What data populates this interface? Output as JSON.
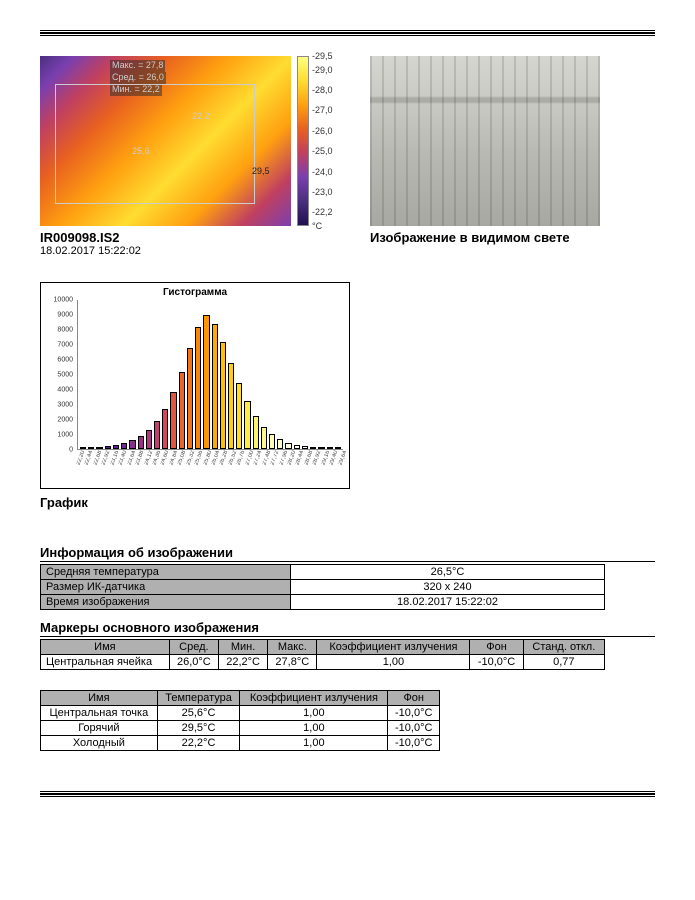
{
  "thermal": {
    "filename": "IR009098.IS2",
    "timestamp": "18.02.2017 15:22:02",
    "overlay": {
      "max_label": "Макс. = 27,8",
      "avg_label": "Сред. = 26,0",
      "min_label": "Мин. = 22,2",
      "center_point": "25,6",
      "hot_point": "29,5",
      "cold_point": "22,2"
    },
    "palette_ticks": [
      "29,5",
      "29,0",
      "28,0",
      "27,0",
      "26,0",
      "25,0",
      "24,0",
      "23,0",
      "22,2",
      "°C"
    ],
    "palette_positions_pct": [
      0,
      8,
      20,
      32,
      44,
      56,
      68,
      80,
      92,
      100
    ]
  },
  "visible_caption": "Изображение в видимом свете",
  "histogram": {
    "title": "Гистограмма",
    "caption": "График",
    "ymax": 10000,
    "ytick_step": 1000,
    "yticks": [
      "10000",
      "9000",
      "8000",
      "7000",
      "6000",
      "5000",
      "4000",
      "3000",
      "2000",
      "1000",
      "0"
    ],
    "bar_values": [
      50,
      80,
      120,
      180,
      260,
      400,
      600,
      900,
      1300,
      1900,
      2700,
      3800,
      5200,
      6800,
      8200,
      9000,
      8400,
      7200,
      5800,
      4400,
      3200,
      2200,
      1500,
      1000,
      650,
      420,
      280,
      180,
      120,
      80,
      50,
      30
    ],
    "bar_colors": [
      "#3a1870",
      "#421a7c",
      "#4a1c88",
      "#55208f",
      "#632592",
      "#742a93",
      "#882e90",
      "#9c3288",
      "#b0387c",
      "#c2406c",
      "#d24a58",
      "#e05640",
      "#eb642a",
      "#f37418",
      "#f9860c",
      "#fc9806",
      "#feaa04",
      "#ffbc08",
      "#ffce14",
      "#ffde28",
      "#ffec44",
      "#fff468",
      "#fff890",
      "#fffab4",
      "#fffcd0",
      "#fffde4",
      "#fffef0",
      "#fffff6",
      "#fffffa",
      "#fffffc",
      "#fffffe",
      "#ffffff"
    ],
    "bar_border": "#000000",
    "x_labels": [
      "22,20",
      "22,44",
      "22,68",
      "22,92",
      "23,16",
      "23,40",
      "23,64",
      "23,88",
      "24,12",
      "24,36",
      "24,60",
      "24,84",
      "25,08",
      "25,32",
      "25,56",
      "25,80",
      "26,04",
      "26,28",
      "26,52",
      "26,76",
      "27,00",
      "27,24",
      "27,48",
      "27,72",
      "27,96",
      "28,20",
      "28,44",
      "28,68",
      "28,92",
      "29,16",
      "29,40",
      "29,64"
    ]
  },
  "info_section": {
    "heading": "Информация об изображении",
    "rows": [
      {
        "label": "Средняя температура",
        "value": "26,5°C"
      },
      {
        "label": "Размер ИК-датчика",
        "value": "320 x 240"
      },
      {
        "label": "Время изображения",
        "value": "18.02.2017 15:22:02"
      }
    ]
  },
  "markers_section": {
    "heading": "Маркеры основного изображения",
    "columns": [
      "Имя",
      "Сред.",
      "Мин.",
      "Макс.",
      "Коэффициент излучения",
      "Фон",
      "Станд. откл."
    ],
    "rows": [
      {
        "name": "Центральная ячейка",
        "avg": "26,0°C",
        "min": "22,2°C",
        "max": "27,8°C",
        "emiss": "1,00",
        "bg": "-10,0°C",
        "std": "0,77"
      }
    ]
  },
  "points_section": {
    "columns": [
      "Имя",
      "Температура",
      "Коэффициент излучения",
      "Фон"
    ],
    "rows": [
      {
        "name": "Центральная точка",
        "temp": "25,6°C",
        "emiss": "1,00",
        "bg": "-10,0°C"
      },
      {
        "name": "Горячий",
        "temp": "29,5°C",
        "emiss": "1,00",
        "bg": "-10,0°C"
      },
      {
        "name": "Холодный",
        "temp": "22,2°C",
        "emiss": "1,00",
        "bg": "-10,0°C"
      }
    ]
  }
}
